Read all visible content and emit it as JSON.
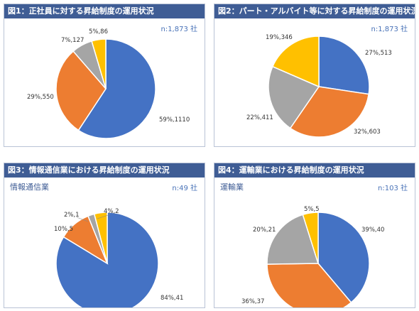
{
  "colors": {
    "blue": "#4472c4",
    "orange": "#ed7d31",
    "gray": "#a5a5a5",
    "yellow": "#ffc000",
    "header": "#3f5d95",
    "sample_text": "#4a73b8"
  },
  "panels": [
    {
      "title": "図1：正社員に対する昇給制度の運用状況",
      "subtitle": "",
      "sample": "n:1,873 社"
    },
    {
      "title": "図2：パート・アルバイト等に対する昇給制度の運用状況",
      "subtitle": "",
      "sample": "n:1,873 社"
    },
    {
      "title": "図3：情報通信業における昇給制度の運用状況",
      "subtitle": "情報通信業",
      "sample": "n:49 社"
    },
    {
      "title": "図4：運輸業における昇給制度の運用状況",
      "subtitle": "運輸業",
      "sample": "n:103 社"
    }
  ],
  "chart_data": [
    {
      "type": "pie",
      "title": "図1：正社員に対する昇給制度の運用状況",
      "slices": [
        {
          "label": "59%,1110",
          "value": 1110,
          "color": "#4472c4"
        },
        {
          "label": "29%,550",
          "value": 550,
          "color": "#ed7d31"
        },
        {
          "label": "7%,127",
          "value": 127,
          "color": "#a5a5a5"
        },
        {
          "label": "5%,86",
          "value": 86,
          "color": "#ffc000"
        }
      ]
    },
    {
      "type": "pie",
      "title": "図2：パート・アルバイト等に対する昇給制度の運用状況",
      "slices": [
        {
          "label": "27%,513",
          "value": 513,
          "color": "#4472c4"
        },
        {
          "label": "32%,603",
          "value": 603,
          "color": "#ed7d31"
        },
        {
          "label": "22%,411",
          "value": 411,
          "color": "#a5a5a5"
        },
        {
          "label": "19%,346",
          "value": 346,
          "color": "#ffc000"
        }
      ]
    },
    {
      "type": "pie",
      "title": "図3：情報通信業における昇給制度の運用状況",
      "slices": [
        {
          "label": "84%,41",
          "value": 41,
          "color": "#4472c4"
        },
        {
          "label": "10%,5",
          "value": 5,
          "color": "#ed7d31"
        },
        {
          "label": "2%,1",
          "value": 1,
          "color": "#a5a5a5"
        },
        {
          "label": "4%,2",
          "value": 2,
          "color": "#ffc000"
        }
      ]
    },
    {
      "type": "pie",
      "title": "図4：運輸業における昇給制度の運用状況",
      "slices": [
        {
          "label": "39%,40",
          "value": 40,
          "color": "#4472c4"
        },
        {
          "label": "36%,37",
          "value": 37,
          "color": "#ed7d31"
        },
        {
          "label": "20%,21",
          "value": 21,
          "color": "#a5a5a5"
        },
        {
          "label": "5%,5",
          "value": 5,
          "color": "#ffc000"
        }
      ]
    }
  ]
}
